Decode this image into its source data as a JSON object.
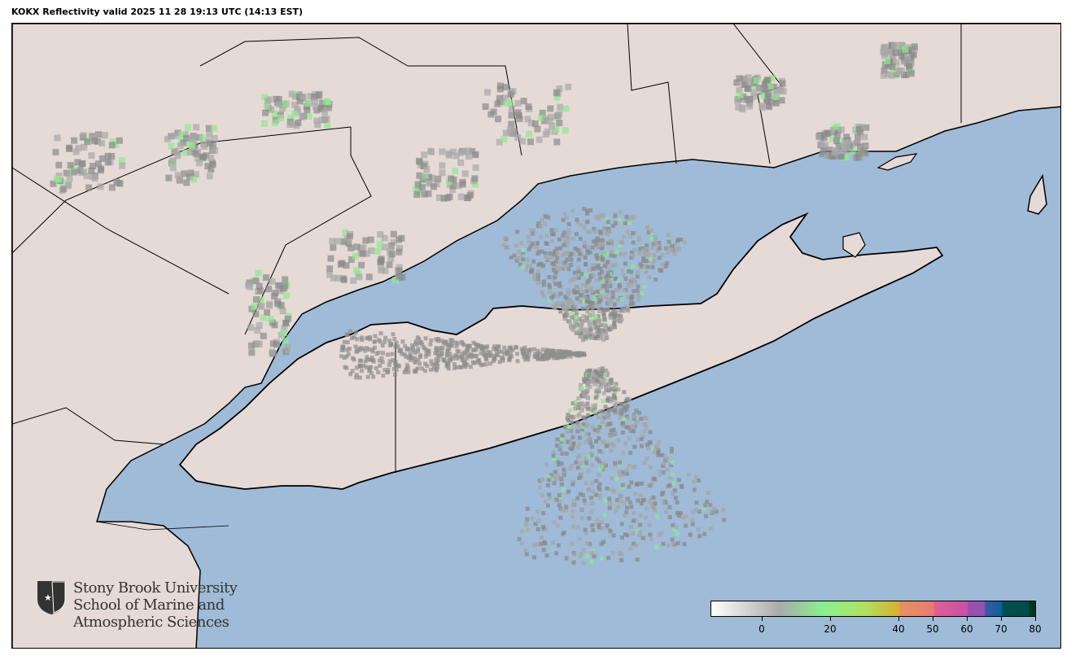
{
  "title": "KOKX Reflectivity valid 2025 11 28 19:13 UTC (14:13 EST)",
  "map": {
    "radar_site": "KOKX",
    "product": "Reflectivity",
    "colors": {
      "water": "#9fbbd7",
      "land": "#e6dad6",
      "border": "#000000"
    }
  },
  "colorbar": {
    "range": [
      -15,
      80
    ],
    "ticks": [
      {
        "value": 0,
        "label": "0"
      },
      {
        "value": 20,
        "label": "20"
      },
      {
        "value": 40,
        "label": "40"
      },
      {
        "value": 50,
        "label": "50"
      },
      {
        "value": 60,
        "label": "60"
      },
      {
        "value": 70,
        "label": "70"
      },
      {
        "value": 80,
        "label": "80"
      }
    ],
    "stops": [
      {
        "value": -15,
        "color": "#ffffff"
      },
      {
        "value": 5,
        "color": "#aaaaaa"
      },
      {
        "value": 18,
        "color": "#88f090"
      },
      {
        "value": 30,
        "color": "#b0e060"
      },
      {
        "value": 40,
        "color": "#d8b030"
      },
      {
        "value": 40.5,
        "color": "#e69060"
      },
      {
        "value": 50,
        "color": "#e87c70"
      },
      {
        "value": 50.5,
        "color": "#e06090"
      },
      {
        "value": 60,
        "color": "#c850a8"
      },
      {
        "value": 60.5,
        "color": "#9850b0"
      },
      {
        "value": 65,
        "color": "#9850b0"
      },
      {
        "value": 65.5,
        "color": "#3a5aa0"
      },
      {
        "value": 70,
        "color": "#1060a0"
      },
      {
        "value": 70.5,
        "color": "#005050"
      },
      {
        "value": 78,
        "color": "#004a4a"
      },
      {
        "value": 78.5,
        "color": "#003820"
      },
      {
        "value": 80,
        "color": "#003820"
      }
    ]
  },
  "logo": {
    "line1": "Stony Brook University",
    "line2": "School of Marine and",
    "line3": "Atmospheric Sciences"
  }
}
